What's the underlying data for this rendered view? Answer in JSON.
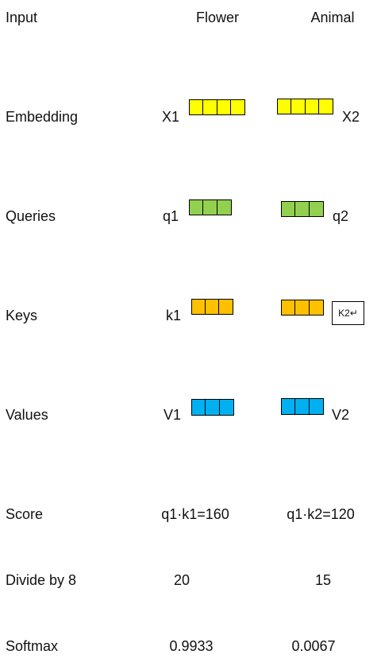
{
  "header": {
    "input_label": "Input",
    "col1": "Flower",
    "col2": "Animal"
  },
  "rows": {
    "embedding": {
      "label": "Embedding",
      "left": "X1",
      "right": "X2"
    },
    "queries": {
      "label": "Queries",
      "left": "q1",
      "right": "q2"
    },
    "keys": {
      "label": "Keys",
      "left": "k1",
      "right_box": "K2↵"
    },
    "values": {
      "label": "Values",
      "left": "V1",
      "right": "V2"
    }
  },
  "score": {
    "label": "Score",
    "left": "q1·k1=160",
    "right": "q1·k2=120"
  },
  "divide": {
    "label": "Divide by 8",
    "left": "20",
    "right": "15"
  },
  "softmax": {
    "label": "Softmax",
    "left": "0.9933",
    "right": "0.0067"
  },
  "colors": {
    "embedding": "#ffff00",
    "queries": "#92d050",
    "keys": "#ffc000",
    "values": "#00b0f0"
  }
}
